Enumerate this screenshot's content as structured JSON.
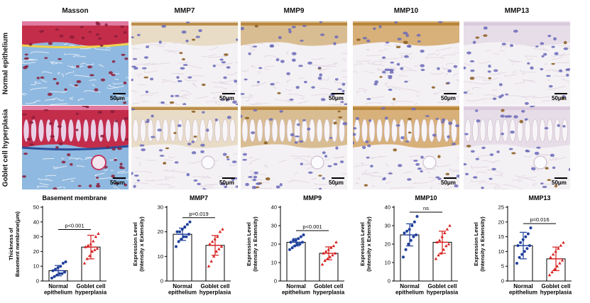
{
  "columns": [
    "Masson",
    "MMP7",
    "MMP9",
    "MMP10",
    "MMP13"
  ],
  "rows": [
    "Normal epithelium",
    "Goblet cell hyperplasia"
  ],
  "scale_bar_label": "50μm",
  "colors": {
    "masson_red": "#c42d4a",
    "masson_blue": "#6fa3d6",
    "ihc_brown": "#b07a2a",
    "hematoxylin": "#6a6ab8",
    "normal_dots": "#1f3f9a",
    "hyperplasia_dots": "#d62020",
    "bar_fill": "#ffffff",
    "axis": "#000000"
  },
  "chart_data": [
    {
      "type": "bar",
      "title": "Basement membrane",
      "ylabel": "Thickness of\nBasement membrane(μm)",
      "categories": [
        "Normal\nepithelium",
        "Goblet cell\nhyperplasia"
      ],
      "values": [
        7,
        23
      ],
      "error": [
        3.5,
        8
      ],
      "ylim": [
        0,
        50
      ],
      "yticks": [
        0,
        10,
        20,
        30,
        40,
        50
      ],
      "significance": "p<0.001",
      "points": [
        [
          2,
          3,
          4,
          5,
          5,
          6,
          7,
          8,
          9,
          10,
          12,
          13
        ],
        [
          12,
          15,
          17,
          20,
          21,
          22,
          23,
          24,
          25,
          27,
          30,
          32
        ]
      ]
    },
    {
      "type": "bar",
      "title": "MMP7",
      "ylabel": "Expression Level\n(Intensity x Extensity)",
      "categories": [
        "Normal\nepithelium",
        "Goblet cell\nhyperplasia"
      ],
      "values": [
        19,
        14.5
      ],
      "error": [
        2.5,
        4
      ],
      "ylim": [
        0,
        30
      ],
      "yticks": [
        0,
        10,
        20,
        30
      ],
      "significance": "p=0.019",
      "points": [
        [
          14,
          16,
          17,
          18,
          18,
          19,
          20,
          20,
          21,
          22,
          23,
          24
        ],
        [
          6,
          8,
          10,
          12,
          13,
          14,
          15,
          16,
          17,
          18,
          20,
          21
        ]
      ]
    },
    {
      "type": "bar",
      "title": "MMP9",
      "ylabel": "Expression Level\n(Intensity x Extensity)",
      "categories": [
        "Normal\nepithelium",
        "Goblet cell\nhyperplasia"
      ],
      "values": [
        21,
        15
      ],
      "error": [
        2,
        3.5
      ],
      "ylim": [
        0,
        40
      ],
      "yticks": [
        0,
        10,
        20,
        30,
        40
      ],
      "significance": "p<0.001",
      "points": [
        [
          17,
          18,
          19,
          20,
          20,
          21,
          21,
          22,
          22,
          23,
          24,
          25
        ],
        [
          9,
          11,
          12,
          13,
          14,
          15,
          15,
          16,
          17,
          18,
          19,
          21
        ]
      ]
    },
    {
      "type": "bar",
      "title": "MMP10",
      "ylabel": "Expression Level\n(Intensity x Extensity)",
      "categories": [
        "Normal\nepithelium",
        "Goblet cell\nhyperplasia"
      ],
      "values": [
        25,
        21
      ],
      "error": [
        6,
        6
      ],
      "ylim": [
        0,
        40
      ],
      "yticks": [
        0,
        10,
        20,
        30,
        40
      ],
      "significance": "ns",
      "points": [
        [
          13,
          17,
          20,
          22,
          24,
          25,
          26,
          27,
          28,
          30,
          32,
          35
        ],
        [
          12,
          14,
          15,
          17,
          19,
          20,
          21,
          22,
          24,
          26,
          28,
          30
        ]
      ]
    },
    {
      "type": "bar",
      "title": "MMP13",
      "ylabel": "Expression Level\n(Intensity x Extensity)",
      "categories": [
        "Normal\nepithelium",
        "Goblet cell\nhyperplasia"
      ],
      "values": [
        12,
        7.5
      ],
      "error": [
        4.5,
        4
      ],
      "ylim": [
        0,
        25
      ],
      "yticks": [
        0,
        5,
        10,
        15,
        20,
        25
      ],
      "significance": "p=0.016",
      "points": [
        [
          6,
          8,
          9,
          10,
          11,
          12,
          12,
          13,
          14,
          15,
          16,
          18
        ],
        [
          2,
          3,
          4,
          5,
          6,
          7,
          8,
          9,
          10,
          11,
          12,
          13
        ]
      ]
    }
  ]
}
